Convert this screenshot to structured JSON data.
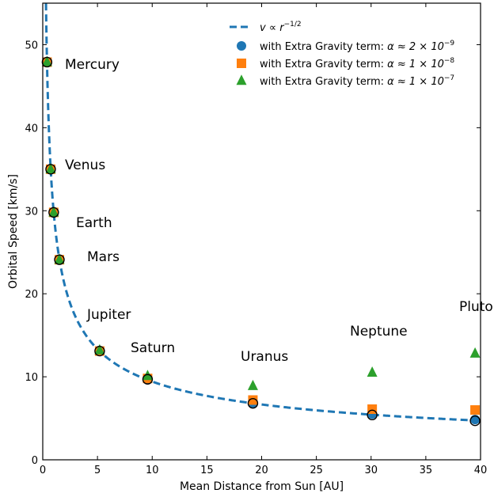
{
  "chart_data": {
    "type": "scatter",
    "xlabel": "Mean Distance from Sun [AU]",
    "ylabel": "Orbital Speed [km/s]",
    "xlim": [
      0,
      40
    ],
    "ylim": [
      0,
      55
    ],
    "xticks": [
      0,
      5,
      10,
      15,
      20,
      25,
      30,
      35,
      40
    ],
    "yticks": [
      0,
      10,
      20,
      30,
      40,
      50
    ],
    "grid": false,
    "legend_position": "top-right",
    "planets": [
      {
        "name": "Mercury",
        "x": 0.39,
        "y": 47.9
      },
      {
        "name": "Venus",
        "x": 0.72,
        "y": 35.0
      },
      {
        "name": "Earth",
        "x": 1.0,
        "y": 29.8
      },
      {
        "name": "Mars",
        "x": 1.52,
        "y": 24.1
      },
      {
        "name": "Jupiter",
        "x": 5.2,
        "y": 13.1
      },
      {
        "name": "Saturn",
        "x": 9.58,
        "y": 9.7
      },
      {
        "name": "Uranus",
        "x": 19.2,
        "y": 6.8
      },
      {
        "name": "Neptune",
        "x": 30.1,
        "y": 5.4
      },
      {
        "name": "Pluto",
        "x": 39.5,
        "y": 4.7
      }
    ],
    "series": [
      {
        "name": "v ∝ r^-1/2",
        "kind": "line",
        "style": "dashed",
        "color": "#1f77b4",
        "formula_coefficient": 29.8
      },
      {
        "name": "with Extra Gravity term:  α ≈ 2 × 10^-9",
        "kind": "scatter",
        "marker": "circle",
        "color": "#1f77b4",
        "points": [
          [
            0.39,
            47.9
          ],
          [
            0.72,
            35.0
          ],
          [
            1.0,
            29.8
          ],
          [
            1.52,
            24.1
          ],
          [
            5.2,
            13.1
          ],
          [
            9.58,
            9.7
          ],
          [
            19.2,
            6.85
          ],
          [
            30.1,
            5.5
          ],
          [
            39.5,
            4.85
          ]
        ]
      },
      {
        "name": "with Extra Gravity term:  α ≈ 1 × 10^-8",
        "kind": "scatter",
        "marker": "square",
        "color": "#ff7f0e",
        "points": [
          [
            0.39,
            47.9
          ],
          [
            0.72,
            35.0
          ],
          [
            1.0,
            29.8
          ],
          [
            1.52,
            24.1
          ],
          [
            5.2,
            13.1
          ],
          [
            9.58,
            9.8
          ],
          [
            19.2,
            7.2
          ],
          [
            30.1,
            6.1
          ],
          [
            39.5,
            6.0
          ]
        ]
      },
      {
        "name": "with Extra Gravity term:  α ≈ 1 × 10^-7",
        "kind": "scatter",
        "marker": "triangle",
        "color": "#2ca02c",
        "points": [
          [
            0.39,
            47.9
          ],
          [
            0.72,
            35.0
          ],
          [
            1.0,
            29.8
          ],
          [
            1.52,
            24.1
          ],
          [
            5.2,
            13.2
          ],
          [
            9.58,
            10.1
          ],
          [
            19.2,
            8.9
          ],
          [
            30.1,
            10.5
          ],
          [
            39.5,
            12.8
          ]
        ]
      }
    ],
    "legend": [
      {
        "prefix": "",
        "main": "v ∝ r",
        "sup": "−1/2"
      },
      {
        "prefix": "with Extra Gravity term:  ",
        "main": "α ≈ 2 × 10",
        "sup": "−9"
      },
      {
        "prefix": "with Extra Gravity term:  ",
        "main": "α ≈ 1 × 10",
        "sup": "−8"
      },
      {
        "prefix": "with Extra Gravity term:  ",
        "main": "α ≈ 1 × 10",
        "sup": "−7"
      }
    ]
  }
}
